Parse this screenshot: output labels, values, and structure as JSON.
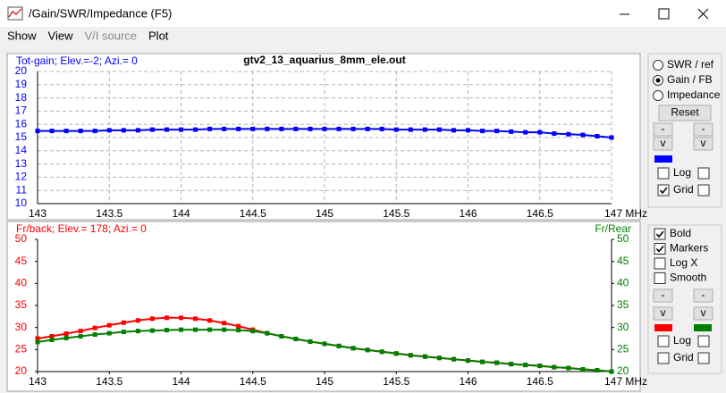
{
  "window": {
    "title": "/Gain/SWR/Impedance (F5)"
  },
  "menu": [
    "Show",
    "View",
    "V/I source",
    "Plot"
  ],
  "chart_data": [
    {
      "type": "line",
      "title": "gtv2_13_aquarius_8mm_ele.out",
      "x": [
        143,
        143.1,
        143.2,
        143.3,
        143.4,
        143.5,
        143.6,
        143.7,
        143.8,
        143.9,
        144,
        144.1,
        144.2,
        144.3,
        144.4,
        144.5,
        144.6,
        144.7,
        144.8,
        144.9,
        145,
        145.1,
        145.2,
        145.3,
        145.4,
        145.5,
        145.6,
        145.7,
        145.8,
        145.9,
        146,
        146.1,
        146.2,
        146.3,
        146.4,
        146.5,
        146.6,
        146.7,
        146.8,
        146.9,
        147
      ],
      "series": [
        {
          "name": "Tot-gain; Elev.=-2; Azi.= 0",
          "color": "#0000ff",
          "values": [
            15.5,
            15.5,
            15.5,
            15.5,
            15.5,
            15.55,
            15.55,
            15.55,
            15.6,
            15.6,
            15.6,
            15.6,
            15.65,
            15.65,
            15.65,
            15.65,
            15.65,
            15.65,
            15.65,
            15.65,
            15.65,
            15.65,
            15.65,
            15.65,
            15.65,
            15.6,
            15.6,
            15.6,
            15.6,
            15.55,
            15.55,
            15.5,
            15.5,
            15.45,
            15.4,
            15.4,
            15.3,
            15.25,
            15.2,
            15.1,
            15.0
          ]
        }
      ],
      "xlim": [
        143,
        147
      ],
      "xticks": [
        143,
        143.5,
        144,
        144.5,
        145,
        145.5,
        146,
        146.5,
        {
          "value": 147,
          "label": "147 MHz"
        }
      ],
      "ylim": [
        10,
        20
      ],
      "yticks": [
        10,
        11,
        12,
        13,
        14,
        15,
        16,
        17,
        18,
        19,
        20
      ],
      "grid": true
    },
    {
      "type": "line",
      "x": [
        143,
        143.1,
        143.2,
        143.3,
        143.4,
        143.5,
        143.6,
        143.7,
        143.8,
        143.9,
        144,
        144.1,
        144.2,
        144.3,
        144.4,
        144.5,
        144.6,
        144.7,
        144.8,
        144.9,
        145,
        145.1,
        145.2,
        145.3,
        145.4,
        145.5,
        145.6,
        145.7,
        145.8,
        145.9,
        146,
        146.1,
        146.2,
        146.3,
        146.4,
        146.5,
        146.6,
        146.7,
        146.8,
        146.9,
        147
      ],
      "series": [
        {
          "name": "Fr/back; Elev.= 178; Azi.= 0",
          "color": "#ff0000",
          "values": [
            27.5,
            28.0,
            28.6,
            29.2,
            29.9,
            30.5,
            31.1,
            31.6,
            32.0,
            32.2,
            32.2,
            32.0,
            31.6,
            31.0,
            30.3,
            29.5,
            28.7,
            28.0,
            27.4,
            26.8,
            26.3,
            25.8,
            25.3,
            24.9,
            24.5,
            24.1,
            23.7,
            23.4,
            23.1,
            22.8,
            22.5,
            22.2,
            22.0,
            21.7,
            21.5,
            21.3,
            21.0,
            20.8,
            20.5,
            20.3,
            20.0
          ]
        },
        {
          "name": "Fr/Rear",
          "color": "#008000",
          "axis": "y2",
          "values": [
            26.7,
            27.2,
            27.6,
            28.0,
            28.4,
            28.7,
            29.0,
            29.2,
            29.3,
            29.4,
            29.5,
            29.5,
            29.5,
            29.5,
            29.4,
            29.2,
            28.7,
            28.0,
            27.4,
            26.8,
            26.3,
            25.8,
            25.3,
            24.9,
            24.5,
            24.1,
            23.7,
            23.4,
            23.1,
            22.8,
            22.5,
            22.2,
            22.0,
            21.7,
            21.5,
            21.3,
            21.0,
            20.8,
            20.5,
            20.3,
            20.0
          ]
        }
      ],
      "xlim": [
        143,
        147
      ],
      "xticks": [
        143,
        143.5,
        144,
        144.5,
        145,
        145.5,
        146,
        146.5,
        {
          "value": 147,
          "label": "147 MHz"
        }
      ],
      "ylim": [
        20,
        50
      ],
      "yticks": [
        20,
        25,
        30,
        35,
        40,
        45,
        50
      ],
      "y2lim": [
        20,
        50
      ],
      "y2ticks": [
        20,
        25,
        30,
        35,
        40,
        45,
        50
      ],
      "grid": false
    }
  ],
  "top_panel": {
    "options": [
      {
        "label": "SWR / ref",
        "selected": false
      },
      {
        "label": "Gain / FB",
        "selected": true
      },
      {
        "label": "Impedance",
        "selected": false
      }
    ],
    "reset": "Reset",
    "buttons": [
      "-",
      "-",
      "v",
      "v"
    ],
    "checks": [
      {
        "label": "Log",
        "checked": false
      },
      {
        "label": "Grid",
        "checked": true
      }
    ]
  },
  "bottom_panel": {
    "checks": [
      {
        "label": "Bold",
        "checked": true
      },
      {
        "label": "Markers",
        "checked": true
      },
      {
        "label": "Log X",
        "checked": false
      },
      {
        "label": "Smooth",
        "checked": false
      }
    ],
    "buttons": [
      "-",
      "-",
      "v",
      "v"
    ],
    "axis_checks": [
      {
        "label": "Log",
        "checked": false
      },
      {
        "label": "Grid",
        "checked": false
      }
    ]
  }
}
